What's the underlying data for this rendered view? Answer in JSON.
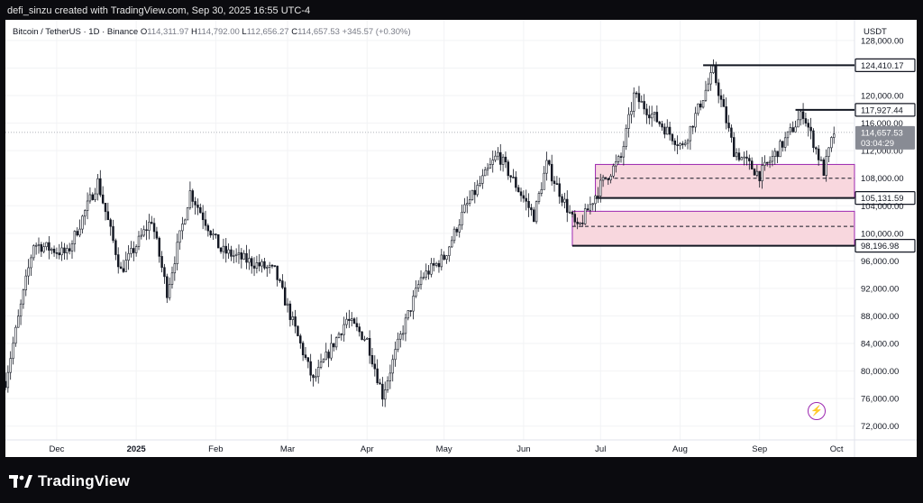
{
  "header": {
    "author_line": "defi_sinzu created with TradingView.com, Sep 30, 2025 16:55 UTC-4"
  },
  "legend": {
    "symbol": "Bitcoin / TetherUS · 1D · Binance",
    "o_label": "O",
    "o_value": "114,311.97",
    "h_label": "H",
    "h_value": "114,792.00",
    "l_label": "L",
    "l_value": "112,656.27",
    "c_label": "C",
    "c_value": "114,657.53",
    "change": "+345.57 (+0.30%)"
  },
  "currency": "USDT",
  "brand": {
    "name": "TradingView"
  },
  "icons": {
    "logo": "tradingview-logo-icon",
    "bolt": "lightning-icon"
  },
  "colors": {
    "up": "#ffffff",
    "down": "#131722",
    "zone_fill": "#f8d7de",
    "zone_border": "#9c27b0",
    "level": "#131722",
    "last_price_tag": "#888b94"
  },
  "chart_data": {
    "type": "candlestick",
    "title": "Bitcoin / TetherUS · 1D · Binance",
    "x_ticks": [
      "Dec",
      "2025",
      "Feb",
      "Mar",
      "Apr",
      "May",
      "Jun",
      "Jul",
      "Aug",
      "Sep",
      "Oct"
    ],
    "x_tick_dates": [
      "2024-12-01",
      "2025-01-01",
      "2025-02-01",
      "2025-03-01",
      "2025-04-01",
      "2025-05-01",
      "2025-06-01",
      "2025-07-01",
      "2025-08-01",
      "2025-09-01",
      "2025-10-01"
    ],
    "y_ticks": [
      72000,
      76000,
      80000,
      84000,
      88000,
      92000,
      96000,
      100000,
      104000,
      108000,
      112000,
      116000,
      120000,
      124000,
      128000
    ],
    "y_tick_labels": [
      "72,000.00",
      "76,000.00",
      "80,000.00",
      "84,000.00",
      "88,000.00",
      "92,000.00",
      "96,000.00",
      "100,000.00",
      "104,000.00",
      "108,000.00",
      "112,000.00",
      "116,000.00",
      "120,000.00",
      "124,000.00",
      "128,000.00"
    ],
    "ylim": [
      70000,
      131000
    ],
    "xlim": [
      "2024-11-11",
      "2025-10-08"
    ],
    "grid": true,
    "anchors": [
      [
        "2024-11-11",
        78500
      ],
      [
        "2024-11-22",
        98500
      ],
      [
        "2024-12-05",
        97000
      ],
      [
        "2024-12-17",
        107500
      ],
      [
        "2024-12-26",
        94500
      ],
      [
        "2025-01-07",
        102000
      ],
      [
        "2025-01-13",
        91500
      ],
      [
        "2025-01-22",
        106000
      ],
      [
        "2025-02-03",
        97500
      ],
      [
        "2025-02-24",
        94500
      ],
      [
        "2025-03-04",
        86000
      ],
      [
        "2025-03-11",
        78500
      ],
      [
        "2025-03-24",
        87500
      ],
      [
        "2025-04-01",
        84500
      ],
      [
        "2025-04-07",
        76500
      ],
      [
        "2025-04-14",
        85000
      ],
      [
        "2025-04-22",
        93500
      ],
      [
        "2025-05-01",
        96500
      ],
      [
        "2025-05-09",
        103500
      ],
      [
        "2025-05-22",
        111500
      ],
      [
        "2025-06-05",
        102500
      ],
      [
        "2025-06-10",
        110000
      ],
      [
        "2025-06-22",
        100500
      ],
      [
        "2025-07-01",
        107000
      ],
      [
        "2025-07-09",
        111000
      ],
      [
        "2025-07-14",
        120000
      ],
      [
        "2025-08-02",
        112500
      ],
      [
        "2025-08-14",
        123500
      ],
      [
        "2025-08-22",
        112000
      ],
      [
        "2025-09-01",
        108500
      ],
      [
        "2025-09-10",
        113000
      ],
      [
        "2025-09-18",
        117500
      ],
      [
        "2025-09-26",
        109000
      ],
      [
        "2025-09-30",
        114657.53
      ]
    ],
    "lines": [
      {
        "label": "124,410.17",
        "value": 124410.17,
        "from": "2025-08-10"
      },
      {
        "label": "117,927.44",
        "value": 117927.44,
        "from": "2025-09-15"
      },
      {
        "label": "105,131.59",
        "value": 105131.59,
        "from": "2025-06-29"
      },
      {
        "label": "98,196.98",
        "value": 98196.98,
        "from": "2025-06-20"
      }
    ],
    "zones": [
      {
        "from": "2025-06-29",
        "low": 105131.59,
        "high": 110000,
        "mid": 108000
      },
      {
        "from": "2025-06-20",
        "low": 98196.98,
        "high": 103200,
        "mid": 101000
      }
    ],
    "last_price": {
      "value": 114657.53,
      "label": "114,657.53",
      "countdown": "03:04:29"
    }
  }
}
